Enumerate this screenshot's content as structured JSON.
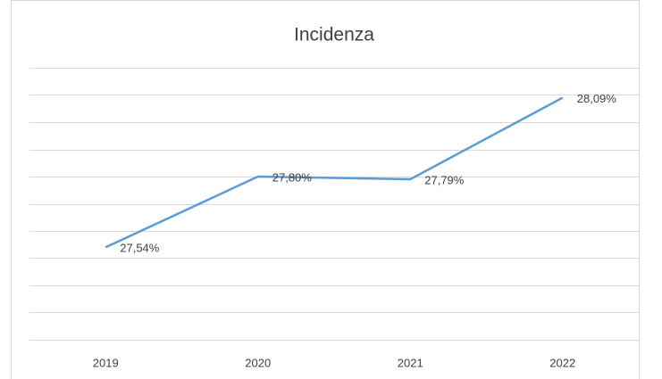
{
  "chart_data": {
    "type": "line",
    "title": "Incidenza",
    "categories": [
      "2019",
      "2020",
      "2021",
      "2022"
    ],
    "series": [
      {
        "name": "Incidenza",
        "color": "#5b9bd5",
        "values": [
          27.54,
          27.8,
          27.79,
          28.09
        ],
        "value_labels": [
          "27,54%",
          "27,80%",
          "27,79%",
          "28,09%"
        ]
      }
    ],
    "ylim": [
      27.2,
      28.2
    ],
    "yticks": [
      27.2,
      27.3,
      27.4,
      27.5,
      27.6,
      27.7,
      27.8,
      27.9,
      28.0,
      28.1,
      28.2
    ],
    "grid": true
  }
}
